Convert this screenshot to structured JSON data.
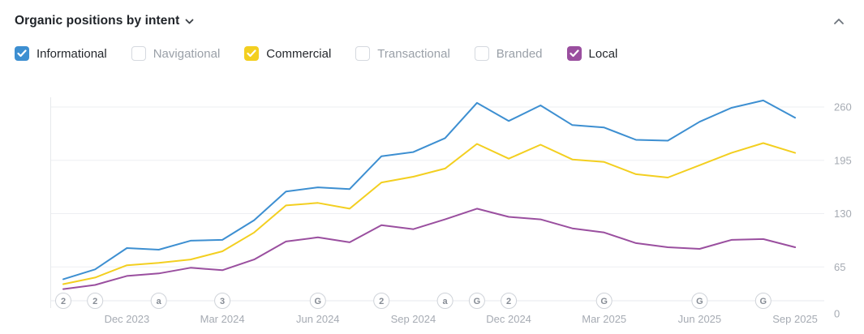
{
  "header": {
    "title": "Organic positions by intent",
    "dropdown_icon": "chevron-down-icon",
    "collapse_icon": "chevron-up-icon"
  },
  "legend": [
    {
      "label": "Informational",
      "checked": true,
      "color": "#3d8fd1"
    },
    {
      "label": "Navigational",
      "checked": false,
      "color": null
    },
    {
      "label": "Commercial",
      "checked": true,
      "color": "#f3cf20"
    },
    {
      "label": "Transactional",
      "checked": false,
      "color": null
    },
    {
      "label": "Branded",
      "checked": false,
      "color": null
    },
    {
      "label": "Local",
      "checked": true,
      "color": "#9a4f9f"
    }
  ],
  "chart_data": {
    "type": "line",
    "x": [
      "Oct 2023",
      "Nov 2023",
      "Dec 2023",
      "Jan 2024",
      "Feb 2024",
      "Mar 2024",
      "Apr 2024",
      "May 2024",
      "Jun 2024",
      "Jul 2024",
      "Aug 2024",
      "Sep 2024",
      "Oct 2024",
      "Nov 2024",
      "Dec 2024",
      "Jan 2025",
      "Feb 2025",
      "Mar 2025",
      "Apr 2025",
      "May 2025",
      "Jun 2025",
      "Jul 2025",
      "Aug 2025",
      "Sep 2025"
    ],
    "series": [
      {
        "name": "Informational",
        "color": "#3d8fd1",
        "values": [
          50,
          62,
          88,
          86,
          97,
          98,
          122,
          157,
          162,
          160,
          200,
          205,
          222,
          265,
          243,
          262,
          238,
          235,
          220,
          219,
          242,
          259,
          268,
          247
        ]
      },
      {
        "name": "Commercial",
        "color": "#f3cf20",
        "values": [
          44,
          52,
          67,
          70,
          74,
          84,
          107,
          140,
          143,
          136,
          168,
          175,
          185,
          215,
          197,
          214,
          196,
          193,
          178,
          174,
          189,
          204,
          216,
          204
        ]
      },
      {
        "name": "Local",
        "color": "#9a4f9f",
        "values": [
          38,
          43,
          54,
          57,
          64,
          61,
          74,
          96,
          101,
          95,
          116,
          111,
          123,
          136,
          126,
          123,
          112,
          107,
          94,
          89,
          87,
          98,
          99,
          89
        ]
      }
    ],
    "y_ticks": [
      0,
      65,
      130,
      195,
      260
    ],
    "ylim": [
      0,
      275
    ],
    "grid": "horizontal",
    "y_axis_position": "right",
    "x_axis_ticks": [
      {
        "month_index": 2,
        "label": "Dec 2023"
      },
      {
        "month_index": 5,
        "label": "Mar 2024"
      },
      {
        "month_index": 8,
        "label": "Jun 2024"
      },
      {
        "month_index": 11,
        "label": "Sep 2024"
      },
      {
        "month_index": 14,
        "label": "Dec 2024"
      },
      {
        "month_index": 17,
        "label": "Mar 2025"
      },
      {
        "month_index": 20,
        "label": "Jun 2025"
      },
      {
        "month_index": 23,
        "label": "Sep 2025"
      }
    ],
    "annotations": [
      {
        "month_index": 0,
        "label": "2"
      },
      {
        "month_index": 1,
        "label": "2"
      },
      {
        "month_index": 3,
        "label": "a"
      },
      {
        "month_index": 5,
        "label": "3"
      },
      {
        "month_index": 8,
        "label": "G"
      },
      {
        "month_index": 10,
        "label": "2"
      },
      {
        "month_index": 12,
        "label": "a"
      },
      {
        "month_index": 13,
        "label": "G"
      },
      {
        "month_index": 14,
        "label": "2"
      },
      {
        "month_index": 17,
        "label": "G"
      },
      {
        "month_index": 20,
        "label": "G"
      },
      {
        "month_index": 22,
        "label": "G"
      }
    ]
  }
}
